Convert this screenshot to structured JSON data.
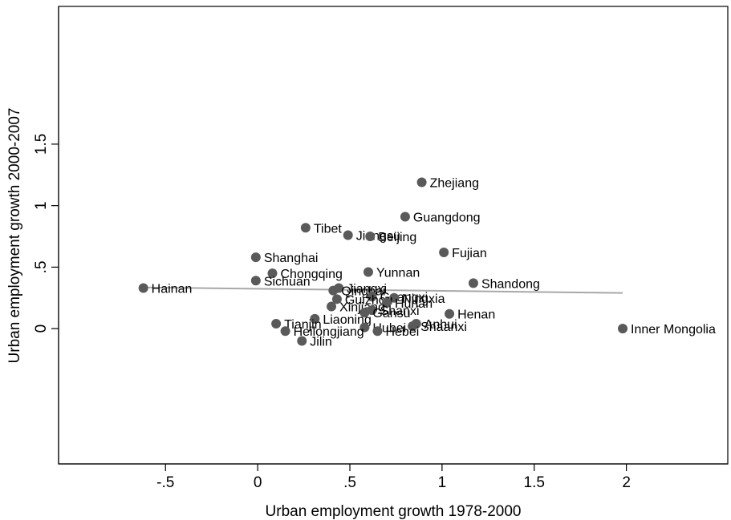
{
  "chart_data": {
    "type": "scatter",
    "xlabel": "Urban employment growth 1978-2000",
    "ylabel": "Urban employment growth 2000-2007",
    "xlim": [
      -1.08,
      2.55
    ],
    "ylim": [
      -1.1,
      2.62
    ],
    "xticks": [
      {
        "value": -0.5,
        "label": "-.5"
      },
      {
        "value": 0,
        "label": "0"
      },
      {
        "value": 0.5,
        "label": ".5"
      },
      {
        "value": 1,
        "label": "1"
      },
      {
        "value": 1.5,
        "label": "1.5"
      },
      {
        "value": 2,
        "label": "2"
      }
    ],
    "yticks": [
      {
        "value": 0,
        "label": "0"
      },
      {
        "value": 0.5,
        "label": ".5"
      },
      {
        "value": 1,
        "label": "1"
      },
      {
        "value": 1.5,
        "label": "1.5"
      }
    ],
    "grid": false,
    "legend": "none",
    "marker_color": "#5a5a5a",
    "fit_line_color": "#a8a8a8",
    "fit_line": {
      "x": [
        -0.62,
        1.98
      ],
      "y": [
        0.335,
        0.29
      ]
    },
    "points": [
      {
        "name": "Zhejiang",
        "x": 0.89,
        "y": 1.19
      },
      {
        "name": "Guangdong",
        "x": 0.8,
        "y": 0.91
      },
      {
        "name": "Tibet",
        "x": 0.26,
        "y": 0.82
      },
      {
        "name": "Jiangsu",
        "x": 0.49,
        "y": 0.76
      },
      {
        "name": "Beijing",
        "x": 0.61,
        "y": 0.75
      },
      {
        "name": "Fujian",
        "x": 1.01,
        "y": 0.62
      },
      {
        "name": "Shanghai",
        "x": -0.01,
        "y": 0.58
      },
      {
        "name": "Yunnan",
        "x": 0.6,
        "y": 0.46
      },
      {
        "name": "Chongqing",
        "x": 0.08,
        "y": 0.45
      },
      {
        "name": "Sichuan",
        "x": -0.01,
        "y": 0.39
      },
      {
        "name": "Shandong",
        "x": 1.17,
        "y": 0.37
      },
      {
        "name": "Hainan",
        "x": -0.62,
        "y": 0.33
      },
      {
        "name": "Jiangxi",
        "x": 0.44,
        "y": 0.33
      },
      {
        "name": "Qinghai",
        "x": 0.41,
        "y": 0.31
      },
      {
        "name": "Guangxi",
        "x": 0.62,
        "y": 0.26
      },
      {
        "name": "Ningxia",
        "x": 0.74,
        "y": 0.25
      },
      {
        "name": "Guizhou",
        "x": 0.43,
        "y": 0.24
      },
      {
        "name": "Hunan",
        "x": 0.7,
        "y": 0.21
      },
      {
        "name": "Xinjiang",
        "x": 0.4,
        "y": 0.18
      },
      {
        "name": "Shanxi",
        "x": 0.62,
        "y": 0.15
      },
      {
        "name": "Gansu",
        "x": 0.58,
        "y": 0.13
      },
      {
        "name": "Henan",
        "x": 1.04,
        "y": 0.12
      },
      {
        "name": "Liaoning",
        "x": 0.31,
        "y": 0.08
      },
      {
        "name": "Tianjin",
        "x": 0.1,
        "y": 0.04
      },
      {
        "name": "Anhui",
        "x": 0.86,
        "y": 0.04
      },
      {
        "name": "Shaanxi",
        "x": 0.84,
        "y": 0.02
      },
      {
        "name": "Hubei",
        "x": 0.58,
        "y": 0.01
      },
      {
        "name": "Inner Mongolia",
        "x": 1.98,
        "y": 0.0
      },
      {
        "name": "Heilongjiang",
        "x": 0.15,
        "y": -0.02
      },
      {
        "name": "Hebei",
        "x": 0.65,
        "y": -0.02
      },
      {
        "name": "Jilin",
        "x": 0.24,
        "y": -0.1
      }
    ]
  }
}
